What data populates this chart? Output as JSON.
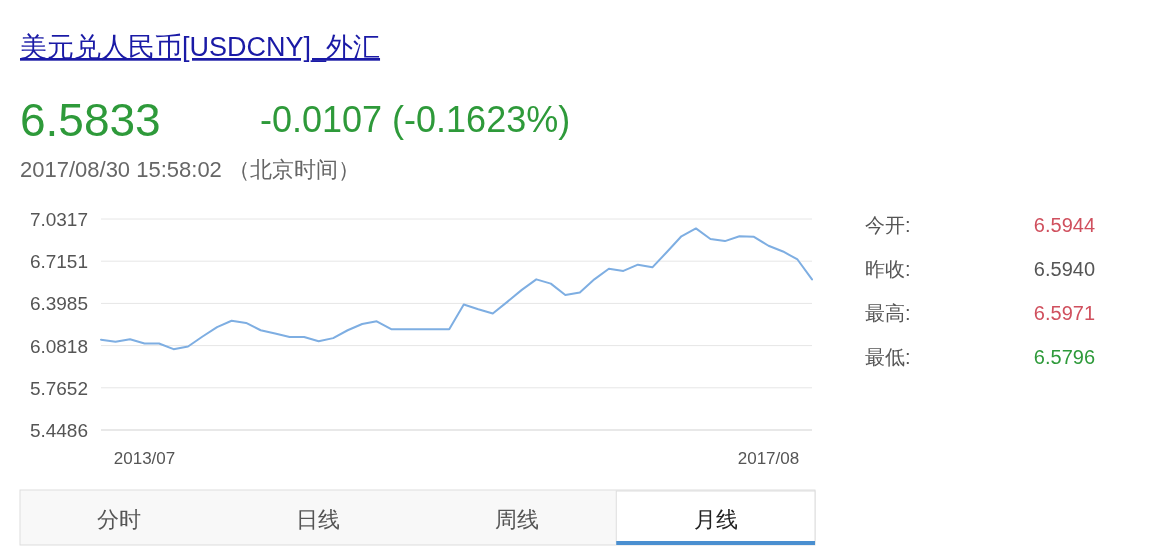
{
  "chart_data": {
    "type": "line",
    "title": "美元兑人民币[USDCNY]_外汇",
    "categories": [
      null,
      null,
      null,
      "2013/07",
      null,
      null,
      null,
      null,
      null,
      null,
      null,
      null,
      null,
      null,
      null,
      null,
      null,
      null,
      null,
      null,
      null,
      null,
      null,
      null,
      null,
      null,
      null,
      null,
      null,
      null,
      null,
      null,
      null,
      null,
      null,
      null,
      null,
      null,
      null,
      null,
      null,
      null,
      null,
      null,
      null,
      null,
      "2017/08",
      null,
      null,
      null
    ],
    "series": [
      {
        "color": "#7eaee2",
        "values": [
          6.126,
          6.11,
          6.13,
          6.098,
          6.098,
          6.055,
          6.075,
          6.15,
          6.221,
          6.268,
          6.252,
          6.197,
          6.173,
          6.146,
          6.146,
          6.114,
          6.138,
          6.197,
          6.244,
          6.264,
          6.205,
          6.205,
          6.205,
          6.205,
          6.205,
          6.39,
          6.355,
          6.323,
          6.41,
          6.5,
          6.579,
          6.547,
          6.461,
          6.48,
          6.579,
          6.658,
          6.642,
          6.689,
          6.669,
          6.784,
          6.902,
          6.961,
          6.882,
          6.866,
          6.902,
          6.898,
          6.831,
          6.788,
          6.728,
          6.579
        ]
      }
    ],
    "ylim": [
      5.4486,
      7.0317
    ],
    "yticks": [
      7.0317,
      6.7151,
      6.3985,
      6.0818,
      5.7652,
      5.4486
    ],
    "grid": "y",
    "marker": "none",
    "line_style": "solid",
    "annotations": [
      "6.5833",
      "-0.0107 (-0.1623%)",
      "2017/08/30 15:58:02 （北京时间）",
      "今开:",
      "6.5944",
      "昨收:",
      "6.5940",
      "最高:",
      "6.5971",
      "最低:",
      "6.5796",
      "分时",
      "日线",
      "周线",
      "月线"
    ]
  }
}
